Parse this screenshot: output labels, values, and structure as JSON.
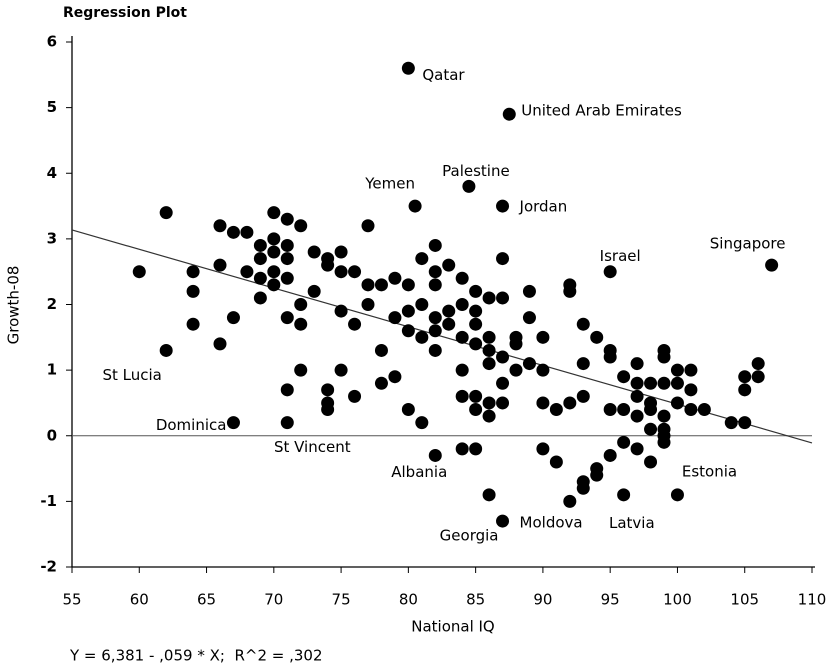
{
  "chart_data": {
    "type": "scatter",
    "title": "Regression Plot",
    "x_label": "National IQ",
    "y_label": "Growth-08",
    "equation": "Y = 6,381 - ,059 * X;  R^2 = ,302",
    "fit": {
      "intercept": 6.381,
      "slope": -0.059
    },
    "xlim": [
      55,
      110
    ],
    "ylim": [
      -2,
      6
    ],
    "xticks": [
      55,
      60,
      65,
      70,
      75,
      80,
      85,
      90,
      95,
      100,
      105,
      110
    ],
    "yticks": [
      -2,
      -1,
      0,
      1,
      2,
      3,
      4,
      5,
      6
    ],
    "color": "#000000",
    "x": [
      62,
      70,
      71,
      72,
      66,
      67,
      68,
      77,
      70,
      71,
      69,
      73,
      74,
      75,
      82,
      81,
      87,
      70,
      71,
      69,
      60,
      64,
      66,
      68,
      69,
      70,
      71,
      74,
      75,
      76,
      78,
      79,
      80,
      82,
      83,
      84,
      85,
      92,
      92,
      82,
      77,
      70,
      64,
      69,
      72,
      73,
      77,
      80,
      81,
      83,
      84,
      85,
      86,
      87,
      89,
      93,
      76,
      75,
      79,
      82,
      85,
      88,
      89,
      64,
      67,
      72,
      71,
      80,
      81,
      82,
      83,
      84,
      85,
      86,
      86,
      87,
      88,
      90,
      94,
      95,
      95,
      99,
      99,
      66,
      78,
      82,
      84,
      86,
      88,
      89,
      90,
      93,
      97,
      72,
      75,
      79,
      78,
      71,
      74,
      96,
      97,
      98,
      100,
      101,
      105,
      106,
      106,
      97,
      98,
      99,
      100,
      101,
      105,
      87,
      74,
      74,
      76,
      80,
      81,
      84,
      85,
      85,
      86,
      87,
      90,
      91,
      92,
      93,
      95,
      96,
      97,
      98,
      98,
      99,
      99,
      100,
      101,
      102,
      104,
      105,
      86,
      84,
      85,
      90,
      91,
      94,
      94,
      95,
      96,
      97,
      98,
      99,
      99,
      96,
      93,
      93
    ],
    "y": [
      3.4,
      3.4,
      3.3,
      3.2,
      3.2,
      3.1,
      3.1,
      3.2,
      3.0,
      2.9,
      2.9,
      2.8,
      2.7,
      2.8,
      2.9,
      2.7,
      2.7,
      2.8,
      2.7,
      2.7,
      2.5,
      2.5,
      2.6,
      2.5,
      2.4,
      2.5,
      2.4,
      2.6,
      2.5,
      2.5,
      2.3,
      2.4,
      2.3,
      2.5,
      2.6,
      2.4,
      2.2,
      2.2,
      2.3,
      2.3,
      2.3,
      2.3,
      2.2,
      2.1,
      2.0,
      2.2,
      2.0,
      1.9,
      2.0,
      1.9,
      2.0,
      1.9,
      2.1,
      2.1,
      2.2,
      1.7,
      1.7,
      1.9,
      1.8,
      1.8,
      1.7,
      1.5,
      1.8,
      1.7,
      1.8,
      1.7,
      1.8,
      1.6,
      1.5,
      1.6,
      1.7,
      1.5,
      1.4,
      1.5,
      1.3,
      1.2,
      1.4,
      1.5,
      1.5,
      1.3,
      1.2,
      1.3,
      1.2,
      1.4,
      1.3,
      1.3,
      1.0,
      1.1,
      1.0,
      1.1,
      1.0,
      1.1,
      1.1,
      1.0,
      1.0,
      0.9,
      0.8,
      0.7,
      0.7,
      0.9,
      0.8,
      0.8,
      1.0,
      1.0,
      0.9,
      1.1,
      0.9,
      0.6,
      0.5,
      0.8,
      0.8,
      0.7,
      0.7,
      0.8,
      0.5,
      0.4,
      0.6,
      0.4,
      0.2,
      0.6,
      0.6,
      0.4,
      0.3,
      0.5,
      0.5,
      0.4,
      0.5,
      0.6,
      0.4,
      0.4,
      0.3,
      0.4,
      0.1,
      0.3,
      0.1,
      0.5,
      0.4,
      0.4,
      0.2,
      0.2,
      0.5,
      -0.2,
      -0.2,
      -0.2,
      -0.4,
      -0.5,
      -0.6,
      -0.3,
      -0.1,
      -0.2,
      -0.4,
      -0.1,
      0.0,
      -0.9,
      -0.7,
      -0.8
    ],
    "labeled_points": [
      {
        "name": "Qatar",
        "x": 80,
        "y": 5.6
      },
      {
        "name": "United Arab Emirates",
        "x": 87.5,
        "y": 4.9
      },
      {
        "name": "Palestine",
        "x": 84.5,
        "y": 3.8
      },
      {
        "name": "Yemen",
        "x": 80.5,
        "y": 3.5
      },
      {
        "name": "Jordan",
        "x": 87,
        "y": 3.5
      },
      {
        "name": "Israel",
        "x": 95,
        "y": 2.5
      },
      {
        "name": "Singapore",
        "x": 107,
        "y": 2.6
      },
      {
        "name": "St Lucia",
        "x": 62,
        "y": 1.3
      },
      {
        "name": "Dominica",
        "x": 67,
        "y": 0.2
      },
      {
        "name": "St Vincent",
        "x": 71,
        "y": 0.2
      },
      {
        "name": "Albania",
        "x": 82,
        "y": -0.3
      },
      {
        "name": "Estonia",
        "x": 100,
        "y": -0.9
      },
      {
        "name": "Moldova",
        "x": 87,
        "y": -1.3
      },
      {
        "name": "Georgia",
        "x": 86,
        "y": -0.9
      },
      {
        "name": "Latvia",
        "x": 92,
        "y": -1.0
      }
    ]
  }
}
